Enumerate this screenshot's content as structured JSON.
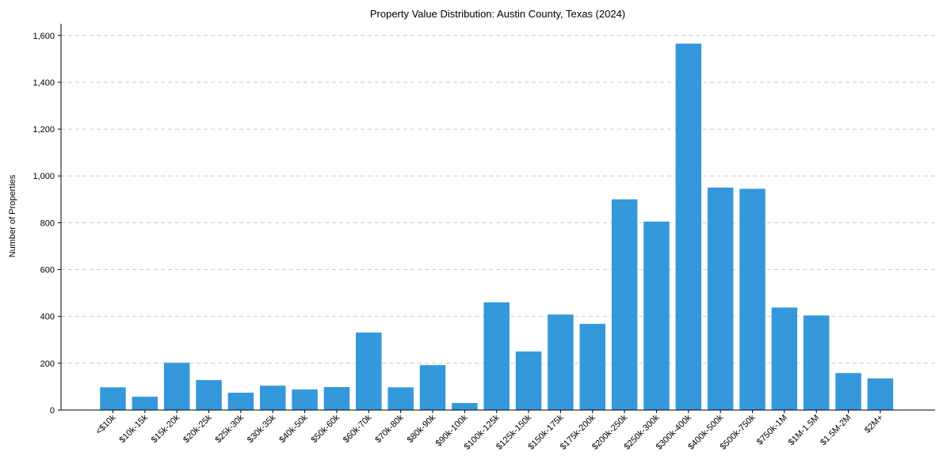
{
  "chart_data": {
    "type": "bar",
    "title": "Property Value Distribution: Austin County, Texas (2024)",
    "xlabel": "",
    "ylabel": "Number of Properties",
    "ylim": [
      0,
      1650
    ],
    "yticks": [
      0,
      200,
      400,
      600,
      800,
      1000,
      1200,
      1400,
      1600
    ],
    "ytick_labels": [
      "0",
      "200",
      "400",
      "600",
      "800",
      "1,000",
      "1,200",
      "1,400",
      "1,600"
    ],
    "grid": "y-dashed",
    "bar_color": "#3498db",
    "categories": [
      "<$10k",
      "$10k-15k",
      "$15k-20k",
      "$20k-25k",
      "$25k-30k",
      "$30k-35k",
      "$40k-50k",
      "$50k-60k",
      "$60k-70k",
      "$70k-80k",
      "$80k-90k",
      "$90k-100k",
      "$100k-125k",
      "$125k-150k",
      "$150k-175k",
      "$175k-200k",
      "$200k-250k",
      "$250k-300k",
      "$300k-400k",
      "$400k-500k",
      "$500k-750k",
      "$750k-1M",
      "$1M-1.5M",
      "$1.5M-2M",
      "$2M+"
    ],
    "values": [
      97,
      57,
      202,
      128,
      74,
      104,
      88,
      98,
      331,
      97,
      192,
      30,
      460,
      250,
      408,
      368,
      900,
      805,
      1565,
      950,
      945,
      438,
      404,
      158,
      135
    ]
  }
}
